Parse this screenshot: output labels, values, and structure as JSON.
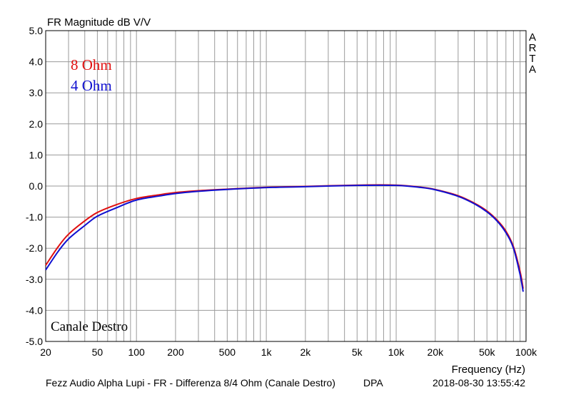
{
  "chart_data": {
    "type": "line",
    "title": "FR Magnitude dB V/V",
    "xlabel": "Frequency (Hz)",
    "ylabel": "",
    "x_scale": "log",
    "xlim": [
      20,
      100000
    ],
    "ylim": [
      -5,
      5
    ],
    "grid": true,
    "x_ticks": [
      20,
      50,
      100,
      200,
      500,
      1000,
      2000,
      5000,
      10000,
      20000,
      50000,
      100000
    ],
    "x_tick_labels": [
      "20",
      "50",
      "100",
      "200",
      "500",
      "1k",
      "2k",
      "5k",
      "10k",
      "20k",
      "50k",
      "100k"
    ],
    "y_ticks": [
      5,
      4,
      3,
      2,
      1,
      0,
      -1,
      -2,
      -3,
      -4,
      -5
    ],
    "y_tick_labels": [
      "5.0",
      "4.0",
      "3.0",
      "2.0",
      "1.0",
      "0.0",
      "-1.0",
      "-2.0",
      "-3.0",
      "-4.0",
      "-5.0"
    ],
    "legend_placement": "top-left",
    "series": [
      {
        "name": "8 Ohm",
        "color": "#e01010",
        "x": [
          20,
          25,
          30,
          40,
          50,
          70,
          100,
          150,
          200,
          300,
          500,
          1000,
          2000,
          5000,
          10000,
          15000,
          20000,
          30000,
          40000,
          50000,
          60000,
          70000,
          80000,
          90000,
          95000
        ],
        "y": [
          -2.55,
          -1.95,
          -1.55,
          -1.12,
          -0.85,
          -0.6,
          -0.4,
          -0.28,
          -0.21,
          -0.15,
          -0.1,
          -0.04,
          -0.01,
          0.03,
          0.03,
          -0.03,
          -0.11,
          -0.31,
          -0.55,
          -0.8,
          -1.1,
          -1.45,
          -1.95,
          -2.75,
          -3.3
        ]
      },
      {
        "name": "4 Ohm",
        "color": "#1010d0",
        "x": [
          20,
          25,
          30,
          40,
          50,
          70,
          100,
          150,
          200,
          300,
          500,
          1000,
          2000,
          5000,
          10000,
          15000,
          20000,
          30000,
          40000,
          50000,
          60000,
          70000,
          80000,
          90000,
          95000
        ],
        "y": [
          -2.7,
          -2.1,
          -1.7,
          -1.27,
          -0.97,
          -0.7,
          -0.45,
          -0.32,
          -0.24,
          -0.17,
          -0.11,
          -0.05,
          -0.02,
          0.02,
          0.02,
          -0.04,
          -0.12,
          -0.33,
          -0.57,
          -0.83,
          -1.13,
          -1.5,
          -2.0,
          -2.85,
          -3.4
        ]
      }
    ],
    "annotations": {
      "corner_label": "ARTA",
      "channel_label": "Canale Destro",
      "footer_left": "Fezz Audio Alpha Lupi - FR - Differenza 8/4 Ohm (Canale Destro)",
      "footer_middle": "DPA",
      "footer_right": "2018-08-30  13:55:42"
    }
  }
}
